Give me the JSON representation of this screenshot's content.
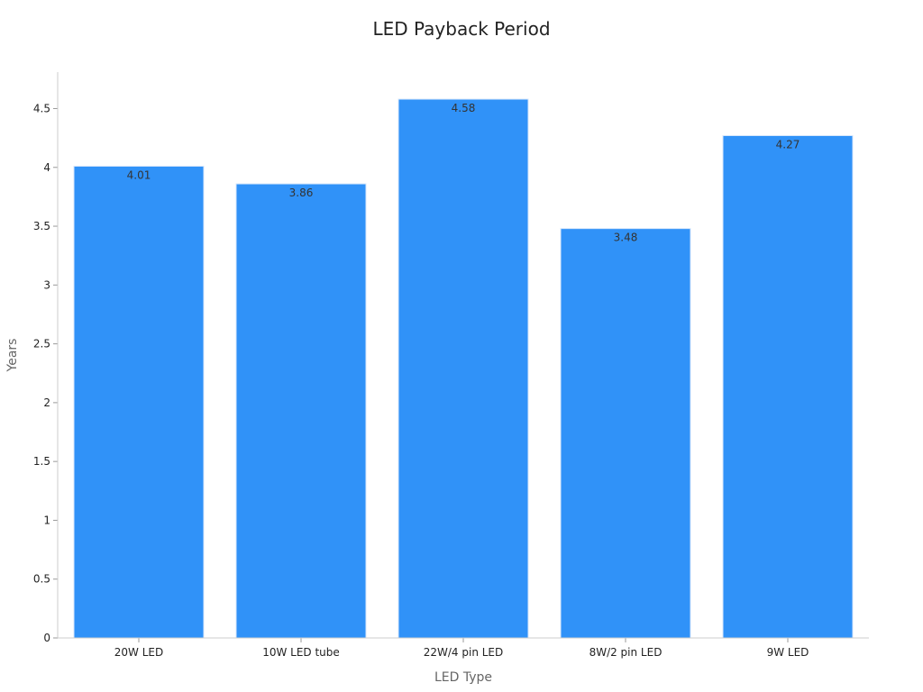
{
  "chart_data": {
    "type": "bar",
    "title": "LED Payback Period",
    "xlabel": "LED Type",
    "ylabel": "Years",
    "categories": [
      "20W LED",
      "10W LED tube",
      "22W/4 pin LED",
      "8W/2 pin LED",
      "9W LED"
    ],
    "values": [
      4.01,
      3.86,
      4.58,
      3.48,
      4.27
    ],
    "data_labels": [
      "4.01",
      "3.86",
      "4.58",
      "3.48",
      "4.27"
    ],
    "yticks": [
      0,
      0.5,
      1,
      1.5,
      2,
      2.5,
      3,
      3.5,
      4,
      4.5
    ],
    "ytick_labels": [
      "0",
      "0.5",
      "1",
      "1.5",
      "2",
      "2.5",
      "3",
      "3.5",
      "4",
      "4.5"
    ],
    "ylim": [
      0,
      4.81
    ],
    "grid": false,
    "bar_color": "#3092f8",
    "bar_edge_color": "#d7e7fb"
  }
}
